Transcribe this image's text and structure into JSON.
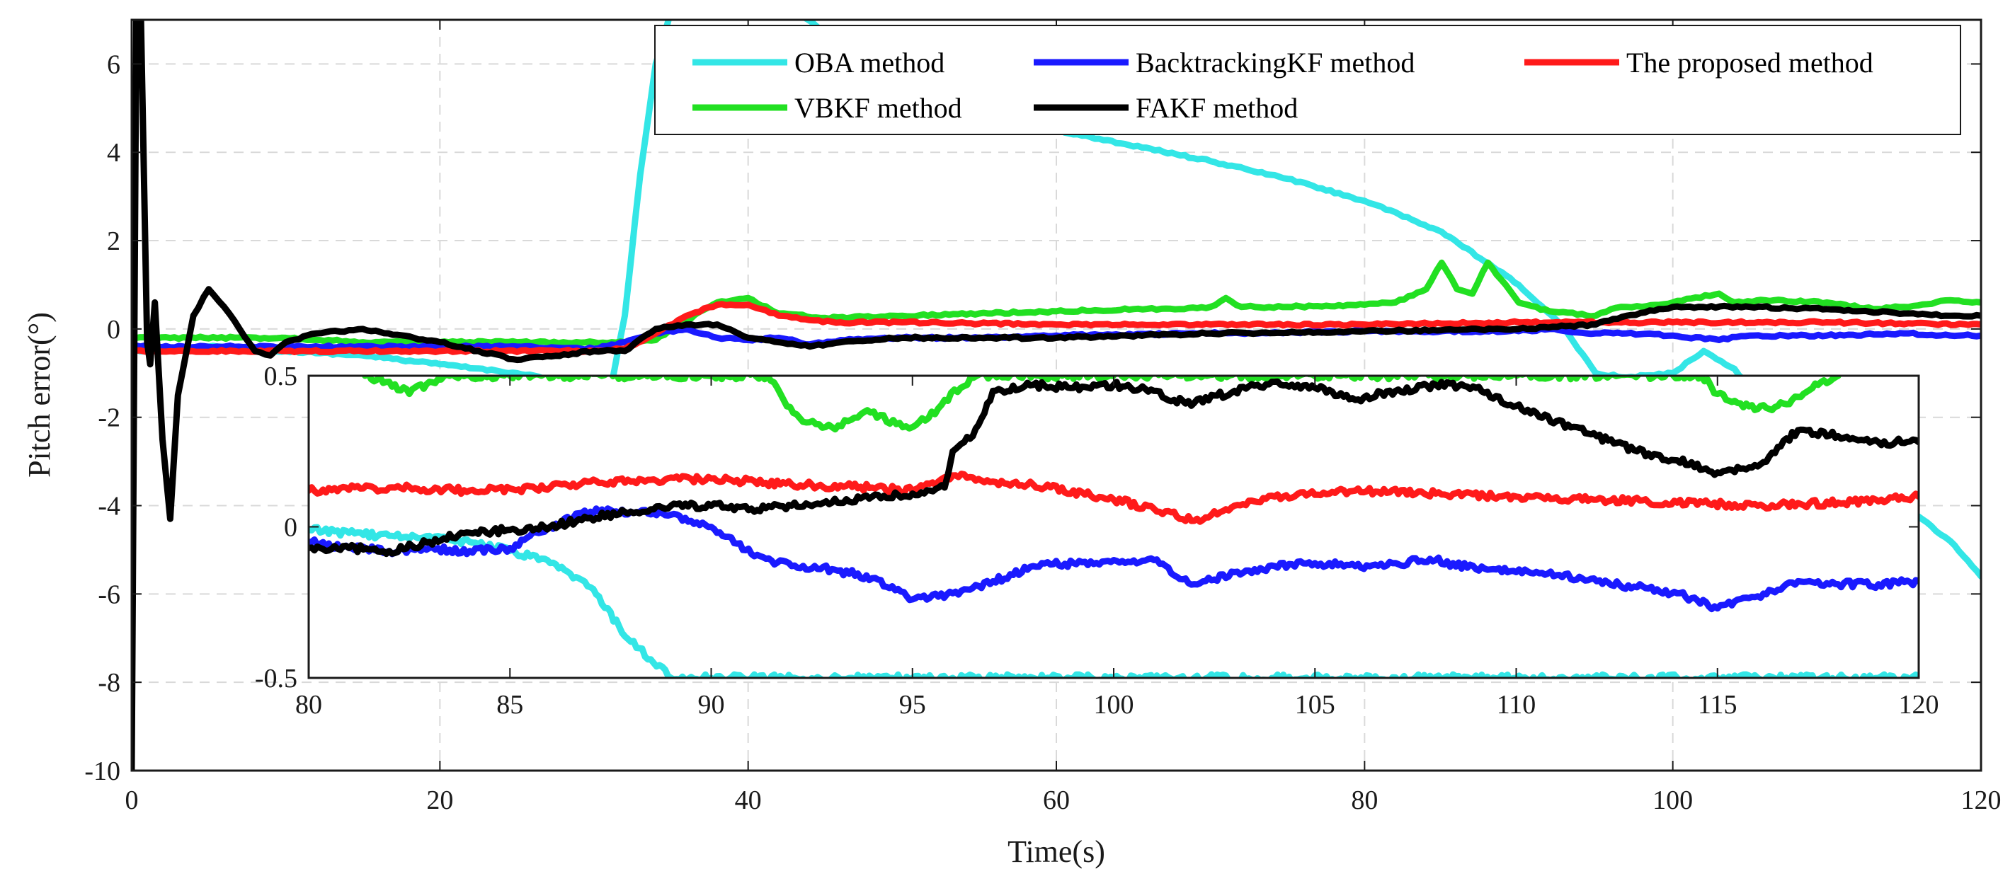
{
  "chart_data": [
    {
      "type": "line",
      "name": "main-plot",
      "xlabel": "Time(s)",
      "ylabel": "Pitch error(°)",
      "xlim": [
        0,
        120
      ],
      "ylim": [
        -10,
        7
      ],
      "xticks": [
        "0",
        "20",
        "40",
        "60",
        "80",
        "100",
        "120"
      ],
      "yticks": [
        "-10",
        "-8",
        "-6",
        "-4",
        "-2",
        "0",
        "2",
        "4",
        "6"
      ],
      "grid": true,
      "legend_position": "top-right",
      "series": [
        {
          "name": "OBA method",
          "color": "#33e6e6",
          "x": [
            0,
            5,
            10,
            15,
            20,
            25,
            30,
            31,
            32,
            33,
            34,
            35,
            36,
            37,
            40,
            43,
            46,
            50,
            60,
            70,
            75,
            80,
            85,
            90,
            93,
            95,
            97,
            100,
            102,
            104,
            106,
            110,
            115,
            118,
            120
          ],
          "y": [
            -0.5,
            -0.4,
            -0.5,
            -0.6,
            -0.8,
            -1.0,
            -1.3,
            -1.5,
            0.3,
            3.5,
            6.0,
            7.2,
            7.2,
            7.2,
            7.2,
            7.2,
            6.5,
            5.5,
            4.5,
            3.8,
            3.4,
            2.9,
            2.2,
            1.0,
            0.0,
            -1.0,
            -1.1,
            -1.0,
            -0.5,
            -0.9,
            -1.8,
            -2.8,
            -4.0,
            -4.8,
            -5.6
          ]
        },
        {
          "name": "VBKF method",
          "color": "#22e022",
          "x": [
            0,
            10,
            15,
            20,
            25,
            28,
            30,
            32,
            34,
            36,
            38,
            40,
            42,
            45,
            50,
            55,
            60,
            65,
            68,
            70,
            71,
            72,
            75,
            80,
            82,
            84,
            85,
            86,
            87,
            88,
            90,
            92,
            95,
            96,
            97,
            98,
            100,
            103,
            104,
            106,
            110,
            113,
            115,
            118,
            120
          ],
          "y": [
            -0.2,
            -0.2,
            -0.3,
            -0.3,
            -0.3,
            -0.3,
            -0.3,
            -0.3,
            -0.25,
            0.2,
            0.6,
            0.7,
            0.35,
            0.25,
            0.3,
            0.35,
            0.4,
            0.45,
            0.45,
            0.5,
            0.7,
            0.5,
            0.5,
            0.55,
            0.6,
            0.9,
            1.5,
            0.9,
            0.8,
            1.5,
            0.6,
            0.4,
            0.3,
            0.45,
            0.5,
            0.5,
            0.6,
            0.8,
            0.6,
            0.65,
            0.6,
            0.45,
            0.5,
            0.65,
            0.6
          ]
        },
        {
          "name": "BacktrackingKF method",
          "color": "#1a1aff",
          "x": [
            0,
            10,
            20,
            25,
            30,
            32,
            34,
            36,
            38,
            40,
            42,
            44,
            46,
            50,
            55,
            60,
            70,
            80,
            85,
            90,
            92,
            95,
            97,
            100,
            103,
            105,
            110,
            115,
            118,
            120
          ],
          "y": [
            -0.4,
            -0.4,
            -0.4,
            -0.4,
            -0.45,
            -0.3,
            -0.1,
            0.0,
            -0.2,
            -0.25,
            -0.2,
            -0.35,
            -0.25,
            -0.2,
            -0.2,
            -0.15,
            -0.1,
            -0.05,
            -0.05,
            -0.05,
            0.0,
            -0.1,
            -0.1,
            -0.15,
            -0.25,
            -0.15,
            -0.15,
            -0.1,
            -0.15,
            -0.15
          ]
        },
        {
          "name": "The proposed method",
          "color": "#ff1a1a",
          "x": [
            0,
            10,
            20,
            30,
            32,
            34,
            36,
            38,
            40,
            42,
            44,
            46,
            50,
            60,
            70,
            80,
            90,
            100,
            110,
            120
          ],
          "y": [
            -0.5,
            -0.5,
            -0.5,
            -0.5,
            -0.45,
            -0.1,
            0.3,
            0.55,
            0.55,
            0.3,
            0.2,
            0.15,
            0.15,
            0.1,
            0.1,
            0.1,
            0.15,
            0.15,
            0.15,
            0.1
          ]
        },
        {
          "name": "FAKF method",
          "color": "#000000",
          "x": [
            0,
            0.3,
            0.6,
            1,
            1.2,
            1.5,
            2,
            2.5,
            3,
            4,
            5,
            6,
            7,
            8,
            9,
            10,
            12,
            15,
            20,
            25,
            30,
            32,
            34,
            36,
            38,
            40,
            42,
            44,
            46,
            50,
            60,
            70,
            80,
            90,
            95,
            97,
            100,
            105,
            110,
            115,
            118,
            120
          ],
          "y": [
            -10,
            7,
            7,
            -0.3,
            -0.8,
            0.6,
            -2.5,
            -4.3,
            -1.5,
            0.3,
            0.9,
            0.5,
            0.0,
            -0.5,
            -0.6,
            -0.3,
            -0.1,
            0.0,
            -0.3,
            -0.7,
            -0.5,
            -0.5,
            0.0,
            0.1,
            0.1,
            -0.2,
            -0.3,
            -0.4,
            -0.3,
            -0.2,
            -0.2,
            -0.1,
            -0.05,
            0.0,
            0.1,
            0.3,
            0.5,
            0.5,
            0.45,
            0.35,
            0.3,
            0.3
          ]
        }
      ]
    },
    {
      "type": "line",
      "name": "inset-plot",
      "xlim": [
        80,
        120
      ],
      "ylim": [
        -0.5,
        0.5
      ],
      "xticks": [
        "80",
        "85",
        "90",
        "95",
        "100",
        "105",
        "110",
        "115",
        "120"
      ],
      "yticks": [
        "-0.5",
        "0",
        "0.5"
      ],
      "grid": false,
      "series": [
        {
          "name": "OBA method",
          "color": "#33e6e6",
          "x": [
            80,
            81,
            82,
            83,
            84,
            85,
            86,
            87,
            88,
            89,
            90,
            91,
            92,
            93,
            93.5,
            94,
            94.5,
            95,
            96,
            97,
            98,
            99,
            100,
            102,
            104,
            106,
            110,
            114,
            114.6,
            115,
            115.5,
            116,
            117,
            118,
            119,
            120
          ],
          "y": [
            -0.01,
            -0.02,
            -0.03,
            -0.03,
            -0.05,
            -0.08,
            -0.12,
            -0.2,
            -0.38,
            -0.5,
            -0.5,
            -0.5,
            -0.5,
            -0.5,
            -0.5,
            -0.5,
            -0.5,
            -0.5,
            -0.5,
            -0.5,
            -0.5,
            -0.5,
            -0.5,
            -0.5,
            -0.5,
            -0.5,
            -0.5,
            -0.5,
            -0.5,
            -0.5,
            -0.5,
            -0.5,
            -0.5,
            -0.5,
            -0.5,
            -0.5
          ]
        },
        {
          "name": "VBKF method",
          "color": "#22e022",
          "x": [
            81.4,
            82,
            82.5,
            83,
            83.5,
            84,
            84.5,
            85,
            91.4,
            91.8,
            92.2,
            92.6,
            93,
            93.4,
            93.8,
            94.2,
            94.6,
            95,
            95.4,
            95.8,
            96.2,
            96.6,
            114.6,
            115,
            115.5,
            116,
            116.5,
            117,
            117.5,
            118
          ],
          "y": [
            0.5,
            0.48,
            0.44,
            0.48,
            0.5,
            0.5,
            0.5,
            0.5,
            0.5,
            0.42,
            0.36,
            0.34,
            0.33,
            0.35,
            0.38,
            0.37,
            0.34,
            0.33,
            0.36,
            0.42,
            0.46,
            0.5,
            0.5,
            0.44,
            0.41,
            0.39,
            0.4,
            0.43,
            0.47,
            0.5
          ]
        },
        {
          "name": "BacktrackingKF method",
          "color": "#1a1aff",
          "x": [
            80,
            81,
            82,
            83,
            84,
            85,
            85.5,
            86,
            87,
            88,
            89,
            90,
            91,
            92,
            93,
            94,
            95,
            96,
            97,
            98,
            99,
            100,
            101,
            102,
            103,
            104,
            105,
            106,
            107,
            108,
            109,
            110,
            111,
            112,
            113,
            114,
            115,
            116,
            117,
            118,
            119,
            120
          ],
          "y": [
            -0.05,
            -0.07,
            -0.08,
            -0.07,
            -0.08,
            -0.07,
            -0.03,
            0.0,
            0.05,
            0.05,
            0.04,
            0.0,
            -0.09,
            -0.13,
            -0.14,
            -0.17,
            -0.24,
            -0.22,
            -0.18,
            -0.13,
            -0.12,
            -0.11,
            -0.11,
            -0.19,
            -0.15,
            -0.13,
            -0.12,
            -0.13,
            -0.12,
            -0.11,
            -0.14,
            -0.15,
            -0.16,
            -0.18,
            -0.2,
            -0.22,
            -0.27,
            -0.23,
            -0.18,
            -0.19,
            -0.19,
            -0.18
          ]
        },
        {
          "name": "The proposed method",
          "color": "#ff1a1a",
          "x": [
            80,
            82,
            84,
            86,
            87,
            88,
            90,
            92,
            94,
            95,
            96,
            97,
            98,
            100,
            101,
            102,
            103,
            104,
            106,
            108,
            110,
            112,
            114,
            116,
            118,
            120
          ],
          "y": [
            0.12,
            0.13,
            0.12,
            0.13,
            0.15,
            0.15,
            0.16,
            0.14,
            0.13,
            0.12,
            0.17,
            0.15,
            0.14,
            0.09,
            0.06,
            0.02,
            0.07,
            0.1,
            0.12,
            0.11,
            0.1,
            0.09,
            0.08,
            0.07,
            0.08,
            0.1
          ]
        },
        {
          "name": "FAKF method",
          "color": "#000000",
          "x": [
            80,
            81,
            82,
            83,
            84,
            85,
            86,
            87,
            88,
            89,
            90,
            91,
            92,
            93,
            94,
            95,
            95.8,
            96,
            96.5,
            97,
            98,
            99,
            100,
            101,
            101.5,
            102,
            103,
            104,
            105,
            106,
            107,
            108,
            109,
            110,
            111,
            112,
            113,
            114,
            115,
            116,
            117,
            118,
            119,
            120
          ],
          "y": [
            -0.07,
            -0.07,
            -0.08,
            -0.05,
            -0.02,
            -0.01,
            0.0,
            0.03,
            0.05,
            0.07,
            0.07,
            0.06,
            0.07,
            0.08,
            0.1,
            0.11,
            0.13,
            0.25,
            0.3,
            0.45,
            0.47,
            0.46,
            0.47,
            0.45,
            0.42,
            0.41,
            0.45,
            0.48,
            0.46,
            0.42,
            0.45,
            0.47,
            0.46,
            0.4,
            0.35,
            0.3,
            0.25,
            0.22,
            0.18,
            0.2,
            0.32,
            0.3,
            0.28,
            0.28
          ]
        }
      ]
    }
  ]
}
